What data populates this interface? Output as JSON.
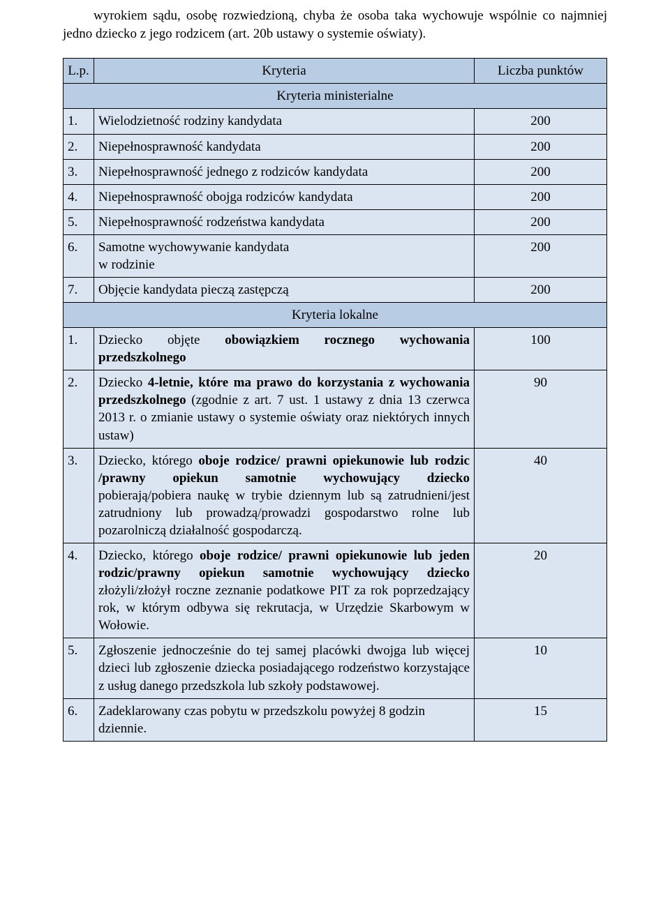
{
  "intro": "wyrokiem sądu, osobę rozwiedzioną, chyba że osoba taka wychowuje wspólnie co najmniej jedno dziecko z jego rodzicem (art. 20b ustawy o systemie oświaty).",
  "header": {
    "lp": "L.p.",
    "kryteria": "Kryteria",
    "punkty": "Liczba punktów"
  },
  "section1": "Kryteria ministerialne",
  "section2": "Kryteria lokalne",
  "min": {
    "r1": {
      "n": "1.",
      "t": "Wielodzietność rodziny kandydata",
      "p": "200"
    },
    "r2": {
      "n": "2.",
      "t": "Niepełnosprawność kandydata",
      "p": "200"
    },
    "r3": {
      "n": "3.",
      "t": "Niepełnosprawność jednego z rodziców kandydata",
      "p": "200"
    },
    "r4": {
      "n": "4.",
      "t": "Niepełnosprawność obojga rodziców kandydata",
      "p": "200"
    },
    "r5": {
      "n": "5.",
      "t": "Niepełnosprawność rodzeństwa kandydata",
      "p": "200"
    },
    "r6": {
      "n": "6.",
      "t": "Samotne wychowywanie kandydata\nw rodzinie",
      "p": "200"
    },
    "r7": {
      "n": "7.",
      "t": "Objęcie kandydata pieczą zastępczą",
      "p": "200"
    }
  },
  "lok": {
    "r1": {
      "n": "1.",
      "p": "100",
      "html": "Dziecko objęte <b>obowiązkiem rocznego wychowania przedszkolnego</b>"
    },
    "r2": {
      "n": "2.",
      "p": "90",
      "html": "Dziecko <b>4-letnie, które ma prawo do korzystania z wychowania przedszkolnego</b> (zgodnie z art. 7 ust. 1 ustawy z dnia 13 czerwca 2013 r. o zmianie ustawy o systemie oświaty oraz niektórych innych ustaw)"
    },
    "r3": {
      "n": "3.",
      "p": "40",
      "html": "Dziecko, którego <b>oboje rodzice/ prawni opiekunowie lub rodzic /prawny opiekun samotnie wychowujący dziecko</b> pobierają/pobiera naukę w trybie dziennym lub są zatrudnieni/jest zatrudniony lub prowadzą/prowadzi gospodarstwo rolne lub pozarolniczą działalność gospodarczą."
    },
    "r4": {
      "n": "4.",
      "p": "20",
      "html": "Dziecko, którego <b>oboje rodzice/ prawni opiekunowie lub jeden rodzic/prawny opiekun samotnie wychowujący dziecko</b> złożyli/złożył roczne zeznanie podatkowe PIT za rok poprzedzający rok, w którym odbywa się rekrutacja, w Urzędzie Skarbowym w Wołowie."
    },
    "r5": {
      "n": "5.",
      "p": "10",
      "html": "Zgłoszenie jednocześnie do tej samej placówki dwojga lub więcej dzieci lub zgłoszenie dziecka posiadającego rodzeństwo korzystające z usług danego przedszkola lub szkoły podstawowej."
    },
    "r6": {
      "n": "6.",
      "p": "15",
      "html": "Zadeklarowany czas pobytu w przedszkolu powyżej 8 godzin dziennie."
    }
  },
  "colors": {
    "header_bg": "#b8cce4",
    "cell_bg": "#dbe5f1",
    "border": "#000000"
  }
}
